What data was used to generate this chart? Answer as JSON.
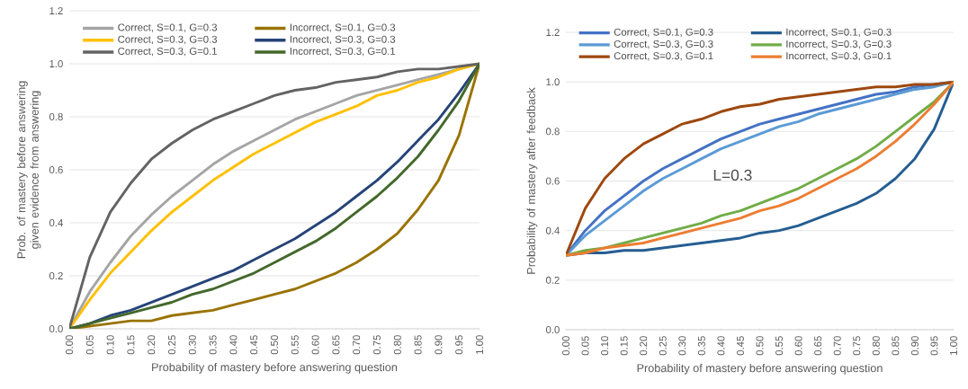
{
  "chart_data": [
    {
      "type": "line",
      "xlabel": "Probability of mastery before answering question",
      "ylabel": "Prob. of mastery before answering given evidence from answering",
      "categories": [
        "0.00",
        "0.05",
        "0.10",
        "0.15",
        "0.20",
        "0.25",
        "0.30",
        "0.35",
        "0.40",
        "0.45",
        "0.50",
        "0.55",
        "0.60",
        "0.65",
        "0.70",
        "0.75",
        "0.80",
        "0.85",
        "0.90",
        "0.95",
        "1.00"
      ],
      "ylim": [
        0,
        1.2
      ],
      "yticks": [
        {
          "value": 0,
          "label": "0.0"
        },
        {
          "value": 0.2,
          "label": "0.2"
        },
        {
          "value": 0.4,
          "label": "0.4"
        },
        {
          "value": 0.6,
          "label": "0.6"
        },
        {
          "value": 0.8,
          "label": "0.8"
        },
        {
          "value": 1.0,
          "label": "1.0"
        },
        {
          "value": 1.2,
          "label": "1.2"
        }
      ],
      "grid": "y",
      "legend": "top left",
      "series": [
        {
          "name": "Correct, S=0.1, G=0.3",
          "color": "#a5a5a5",
          "values": [
            0,
            0.14,
            0.25,
            0.35,
            0.43,
            0.5,
            0.56,
            0.62,
            0.67,
            0.71,
            0.75,
            0.79,
            0.82,
            0.85,
            0.88,
            0.9,
            0.92,
            0.94,
            0.96,
            0.98,
            1
          ]
        },
        {
          "name": "Incorrect, S=0.1, G=0.3",
          "color": "#997300",
          "values": [
            0,
            0.01,
            0.02,
            0.03,
            0.03,
            0.05,
            0.06,
            0.07,
            0.09,
            0.11,
            0.13,
            0.15,
            0.18,
            0.21,
            0.25,
            0.3,
            0.36,
            0.45,
            0.56,
            0.73,
            1
          ]
        },
        {
          "name": "Correct, S=0.3, G=0.3",
          "color": "#ffc000",
          "values": [
            0,
            0.11,
            0.21,
            0.29,
            0.37,
            0.44,
            0.5,
            0.56,
            0.61,
            0.66,
            0.7,
            0.74,
            0.78,
            0.81,
            0.84,
            0.88,
            0.9,
            0.93,
            0.95,
            0.98,
            1
          ]
        },
        {
          "name": "Incorrect, S=0.3, G=0.3",
          "color": "#264478",
          "values": [
            0,
            0.02,
            0.05,
            0.07,
            0.1,
            0.13,
            0.16,
            0.19,
            0.22,
            0.26,
            0.3,
            0.34,
            0.39,
            0.44,
            0.5,
            0.56,
            0.63,
            0.71,
            0.79,
            0.89,
            1
          ]
        },
        {
          "name": "Correct, S=0.3, G=0.1",
          "color": "#636363",
          "values": [
            0,
            0.27,
            0.44,
            0.55,
            0.64,
            0.7,
            0.75,
            0.79,
            0.82,
            0.85,
            0.88,
            0.9,
            0.91,
            0.93,
            0.94,
            0.95,
            0.97,
            0.98,
            0.98,
            0.99,
            1
          ]
        },
        {
          "name": "Incorrect, S=0.3, G=0.1",
          "color": "#43682b",
          "values": [
            0,
            0.02,
            0.04,
            0.06,
            0.08,
            0.1,
            0.13,
            0.15,
            0.18,
            0.21,
            0.25,
            0.29,
            0.33,
            0.38,
            0.44,
            0.5,
            0.57,
            0.65,
            0.75,
            0.86,
            1
          ]
        }
      ]
    },
    {
      "type": "line",
      "xlabel": "Probability of mastery before answering question",
      "ylabel": "Probability of mastery after feedback",
      "annotations": [
        "L=0.3"
      ],
      "categories": [
        "0.00",
        "0.05",
        "0.10",
        "0.15",
        "0.20",
        "0.25",
        "0.30",
        "0.35",
        "0.40",
        "0.45",
        "0.50",
        "0.55",
        "0.60",
        "0.65",
        "0.70",
        "0.75",
        "0.80",
        "0.85",
        "0.90",
        "0.95",
        "1.00"
      ],
      "ylim": [
        0,
        1.2
      ],
      "yticks": [
        {
          "value": 0,
          "label": "0.0"
        },
        {
          "value": 0.2,
          "label": "0.2"
        },
        {
          "value": 0.4,
          "label": "0.4"
        },
        {
          "value": 0.6,
          "label": "0.6"
        },
        {
          "value": 0.8,
          "label": "0.8"
        },
        {
          "value": 1.0,
          "label": "1.0"
        },
        {
          "value": 1.2,
          "label": "1.2"
        }
      ],
      "grid": "y",
      "legend": "top left",
      "series": [
        {
          "name": "Correct, S=0.1, G=0.3",
          "color": "#4472c4",
          "values": [
            0.3,
            0.4,
            0.48,
            0.54,
            0.6,
            0.65,
            0.69,
            0.73,
            0.77,
            0.8,
            0.83,
            0.85,
            0.87,
            0.89,
            0.91,
            0.93,
            0.95,
            0.96,
            0.98,
            0.99,
            1
          ]
        },
        {
          "name": "Incorrect, S=0.1, G=0.3",
          "color": "#255e91",
          "values": [
            0.3,
            0.31,
            0.31,
            0.32,
            0.32,
            0.33,
            0.34,
            0.35,
            0.36,
            0.37,
            0.39,
            0.4,
            0.42,
            0.45,
            0.48,
            0.51,
            0.55,
            0.61,
            0.69,
            0.81,
            1
          ]
        },
        {
          "name": "Correct, S=0.3, G=0.3",
          "color": "#5b9bd5",
          "values": [
            0.3,
            0.38,
            0.44,
            0.5,
            0.56,
            0.61,
            0.65,
            0.69,
            0.73,
            0.76,
            0.79,
            0.82,
            0.84,
            0.87,
            0.89,
            0.91,
            0.93,
            0.95,
            0.97,
            0.98,
            1
          ]
        },
        {
          "name": "Incorrect, S=0.3, G=0.3",
          "color": "#70ad47",
          "values": [
            0.3,
            0.32,
            0.33,
            0.35,
            0.37,
            0.39,
            0.41,
            0.43,
            0.46,
            0.48,
            0.51,
            0.54,
            0.57,
            0.61,
            0.65,
            0.69,
            0.74,
            0.8,
            0.86,
            0.92,
            1
          ]
        },
        {
          "name": "Correct, S=0.3, G=0.1",
          "color": "#9e480e",
          "values": [
            0.3,
            0.49,
            0.61,
            0.69,
            0.75,
            0.79,
            0.83,
            0.85,
            0.88,
            0.9,
            0.91,
            0.93,
            0.94,
            0.95,
            0.96,
            0.97,
            0.98,
            0.98,
            0.99,
            0.99,
            1
          ]
        },
        {
          "name": "Incorrect, S=0.3, G=0.1",
          "color": "#ed7d31",
          "values": [
            0.3,
            0.31,
            0.33,
            0.34,
            0.35,
            0.37,
            0.39,
            0.41,
            0.43,
            0.45,
            0.48,
            0.5,
            0.53,
            0.57,
            0.61,
            0.65,
            0.7,
            0.76,
            0.83,
            0.91,
            1
          ]
        }
      ]
    }
  ]
}
